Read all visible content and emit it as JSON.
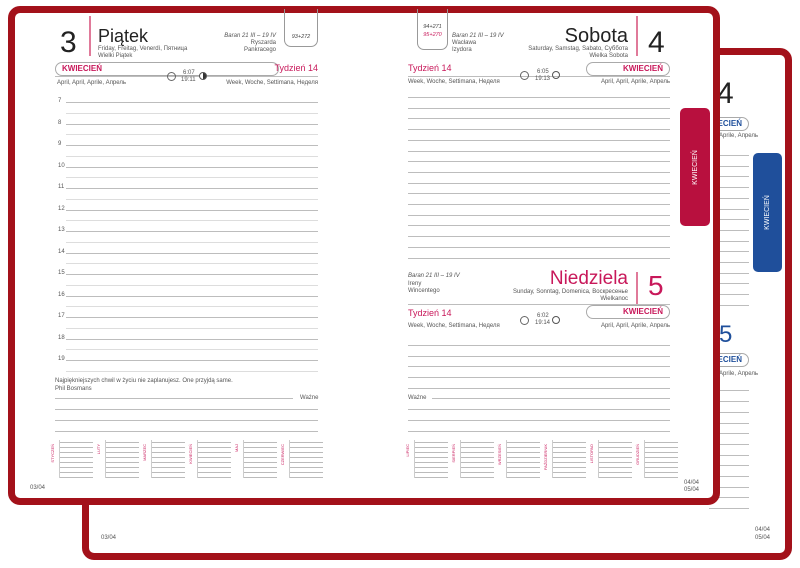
{
  "back_planner": {
    "day_top": "4",
    "month": "KWIECIEŃ",
    "month_sub": "April, April, Aprile, Апрель",
    "day_mid": "5",
    "month_mid": "KWIECIEŃ",
    "month_mid_sub": "April, April, Aprile, Апрель",
    "footer_left": "03/04",
    "footer_right_1": "04/04",
    "footer_right_2": "05/04",
    "tab_label": "KWIECIEŃ",
    "tab_color": "#1f4f9b"
  },
  "front_planner": {
    "frame_color": "#a3111a",
    "accent_color": "#c8185a",
    "tab_label": "KWIECIEŃ",
    "tab_color": "#b8103e",
    "left_page": {
      "day_number": "3",
      "day_name": "Piątek",
      "day_translations": "Friday, Freitag, Venerdì, Пятница",
      "holiday": "Wielki Piątek",
      "zodiac": "Baran 21 III – 19 IV",
      "name_days": [
        "Ryszarda",
        "Pankracego"
      ],
      "day_count": "93+272",
      "month": "KWIECIEŃ",
      "month_translations": "April, April, Aprile, Апрель",
      "sunrise": "6:07",
      "sunset": "19:11",
      "week": "Tydzień 14",
      "week_translations": "Week, Woche, Settimana, Неделя",
      "hours": [
        "7",
        "8",
        "9",
        "10",
        "11",
        "12",
        "13",
        "14",
        "15",
        "16",
        "17",
        "18",
        "19"
      ],
      "quote": "Najpiękniejszych chwil w życiu nie zaplanujesz. One przyjdą same.",
      "quote_author": "Phil Bosmans",
      "important_label": "Ważne",
      "footer": "03/04",
      "mini_calendars": [
        "STYCZEŃ",
        "LUTY",
        "MARZEC",
        "KWIECIEŃ",
        "MAJ",
        "CZERWIEC"
      ]
    },
    "right_page": {
      "saturday": {
        "day_number": "4",
        "day_name": "Sobota",
        "day_translations": "Saturday, Samstag, Sabato, Суббота",
        "holiday": "Wielka Sobota",
        "zodiac": "Baran 21 III – 19 IV",
        "name_days": [
          "Wacława",
          "Izydora"
        ],
        "day_count_1": "94+271",
        "day_count_2": "95+270",
        "month": "KWIECIEŃ",
        "month_translations": "April, April, Aprile, Апрель",
        "sunrise": "6:05",
        "sunset": "19:13",
        "week": "Tydzień 14",
        "week_translations": "Week, Woche, Settimana, Неделя"
      },
      "sunday": {
        "day_number": "5",
        "day_name": "Niedziela",
        "day_translations": "Sunday, Sonntag, Domenica, Воскресенье",
        "holiday": "Wielkanoc",
        "zodiac": "Baran 21 III – 19 IV",
        "name_days": [
          "Ireny",
          "Wincentego"
        ],
        "month": "KWIECIEŃ",
        "month_translations": "April, April, Aprile, Апрель",
        "sunrise": "6:02",
        "sunset": "19:14",
        "week": "Tydzień 14",
        "week_translations": "Week, Woche, Settimana, Неделя"
      },
      "important_label": "Ważne",
      "footer_1": "04/04",
      "footer_2": "05/04",
      "mini_calendars": [
        "LIPIEC",
        "SIERPIEŃ",
        "WRZESIEŃ",
        "PAŹDZIERNIK",
        "LISTOPAD",
        "GRUDZIEŃ"
      ]
    }
  }
}
